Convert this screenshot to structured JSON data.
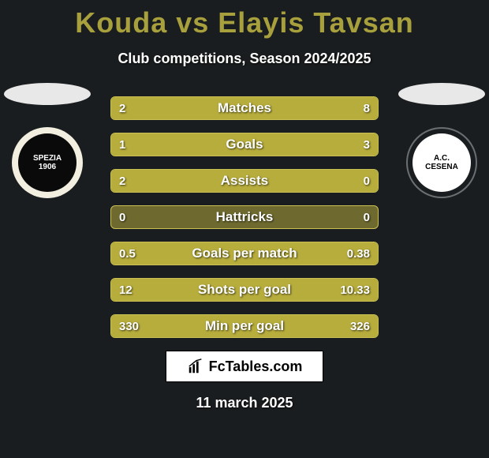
{
  "style": {
    "background": "#1a1d1f",
    "title_color": "#a8a03c",
    "text_color": "#ffffff",
    "bar_track": "#6e6a2f",
    "bar_fill": "#b7ad3d",
    "bar_border": "#c9bf52"
  },
  "header": {
    "title": "Kouda vs Elayis Tavsan",
    "subtitle": "Club competitions, Season 2024/2025"
  },
  "clubs": {
    "left": {
      "ellipse_color": "#e8e8e8",
      "badge_outer": "#f2efe0",
      "badge_inner": "#0a0a0a",
      "badge_text": "SPEZIA\n1906",
      "badge_text_color": "#ffffff"
    },
    "right": {
      "ellipse_color": "#e8e8e8",
      "badge_outer": "#1a1d1f",
      "badge_inner": "#ffffff",
      "badge_text": "A.C.\nCESENA",
      "badge_text_color": "#000000"
    }
  },
  "rows": [
    {
      "label": "Matches",
      "left": "2",
      "right": "8",
      "left_pct": 20,
      "right_pct": 80
    },
    {
      "label": "Goals",
      "left": "1",
      "right": "3",
      "left_pct": 25,
      "right_pct": 75
    },
    {
      "label": "Assists",
      "left": "2",
      "right": "0",
      "left_pct": 100,
      "right_pct": 0
    },
    {
      "label": "Hattricks",
      "left": "0",
      "right": "0",
      "left_pct": 0,
      "right_pct": 0
    },
    {
      "label": "Goals per match",
      "left": "0.5",
      "right": "0.38",
      "left_pct": 57,
      "right_pct": 43
    },
    {
      "label": "Shots per goal",
      "left": "12",
      "right": "10.33",
      "left_pct": 54,
      "right_pct": 46
    },
    {
      "label": "Min per goal",
      "left": "330",
      "right": "326",
      "left_pct": 50,
      "right_pct": 50
    }
  ],
  "footer": {
    "site": "FcTables.com",
    "date": "11 march 2025"
  }
}
